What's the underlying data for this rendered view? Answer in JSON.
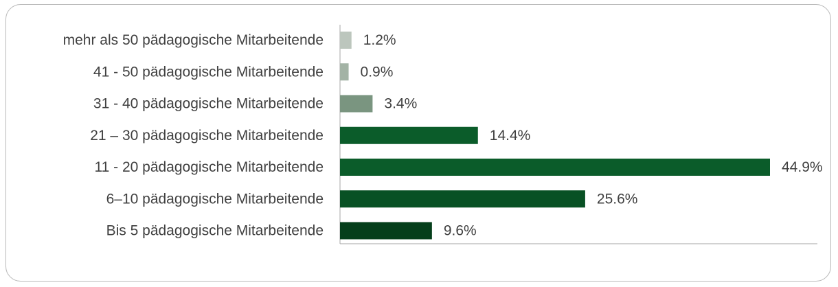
{
  "chart_data": {
    "type": "bar",
    "orientation": "horizontal",
    "categories": [
      "mehr als 50 pädagogische Mitarbeitende",
      "41 - 50 pädagogische Mitarbeitende",
      "31 - 40 pädagogische Mitarbeitende",
      "21 – 30 pädagogische Mitarbeitende",
      "11 - 20 pädagogische Mitarbeitende",
      "6–10 pädagogische Mitarbeitende",
      "Bis 5 pädagogische Mitarbeitende"
    ],
    "values": [
      1.2,
      0.9,
      3.4,
      14.4,
      44.9,
      25.6,
      9.6
    ],
    "value_labels": [
      "1.2%",
      "0.9%",
      "3.4%",
      "14.4%",
      "44.9%",
      "25.6%",
      "9.6%"
    ],
    "colors": [
      "#bcc6bd",
      "#a3b3a5",
      "#7a9580",
      "#0b5c2a",
      "#0b5c2a",
      "#085124",
      "#053f1b"
    ],
    "title": "",
    "xlabel": "",
    "ylabel": "",
    "xlim": [
      0,
      49
    ],
    "grid": false,
    "legend": "none"
  }
}
